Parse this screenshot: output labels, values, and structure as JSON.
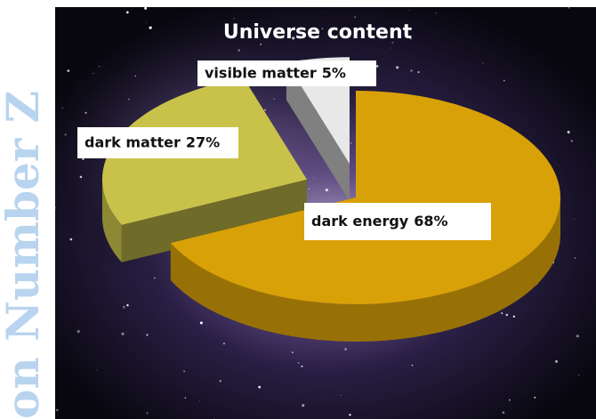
{
  "chart_data": {
    "type": "pie",
    "title": "Universe content",
    "categories": [
      "dark energy",
      "dark matter",
      "visible matter"
    ],
    "values": [
      68,
      27,
      5
    ],
    "value_labels": [
      "68%",
      "27%",
      "5%"
    ],
    "colors": [
      "#d9a108",
      "#c9c24a",
      "#e8e8e8"
    ],
    "watermark": "on Number Z"
  }
}
